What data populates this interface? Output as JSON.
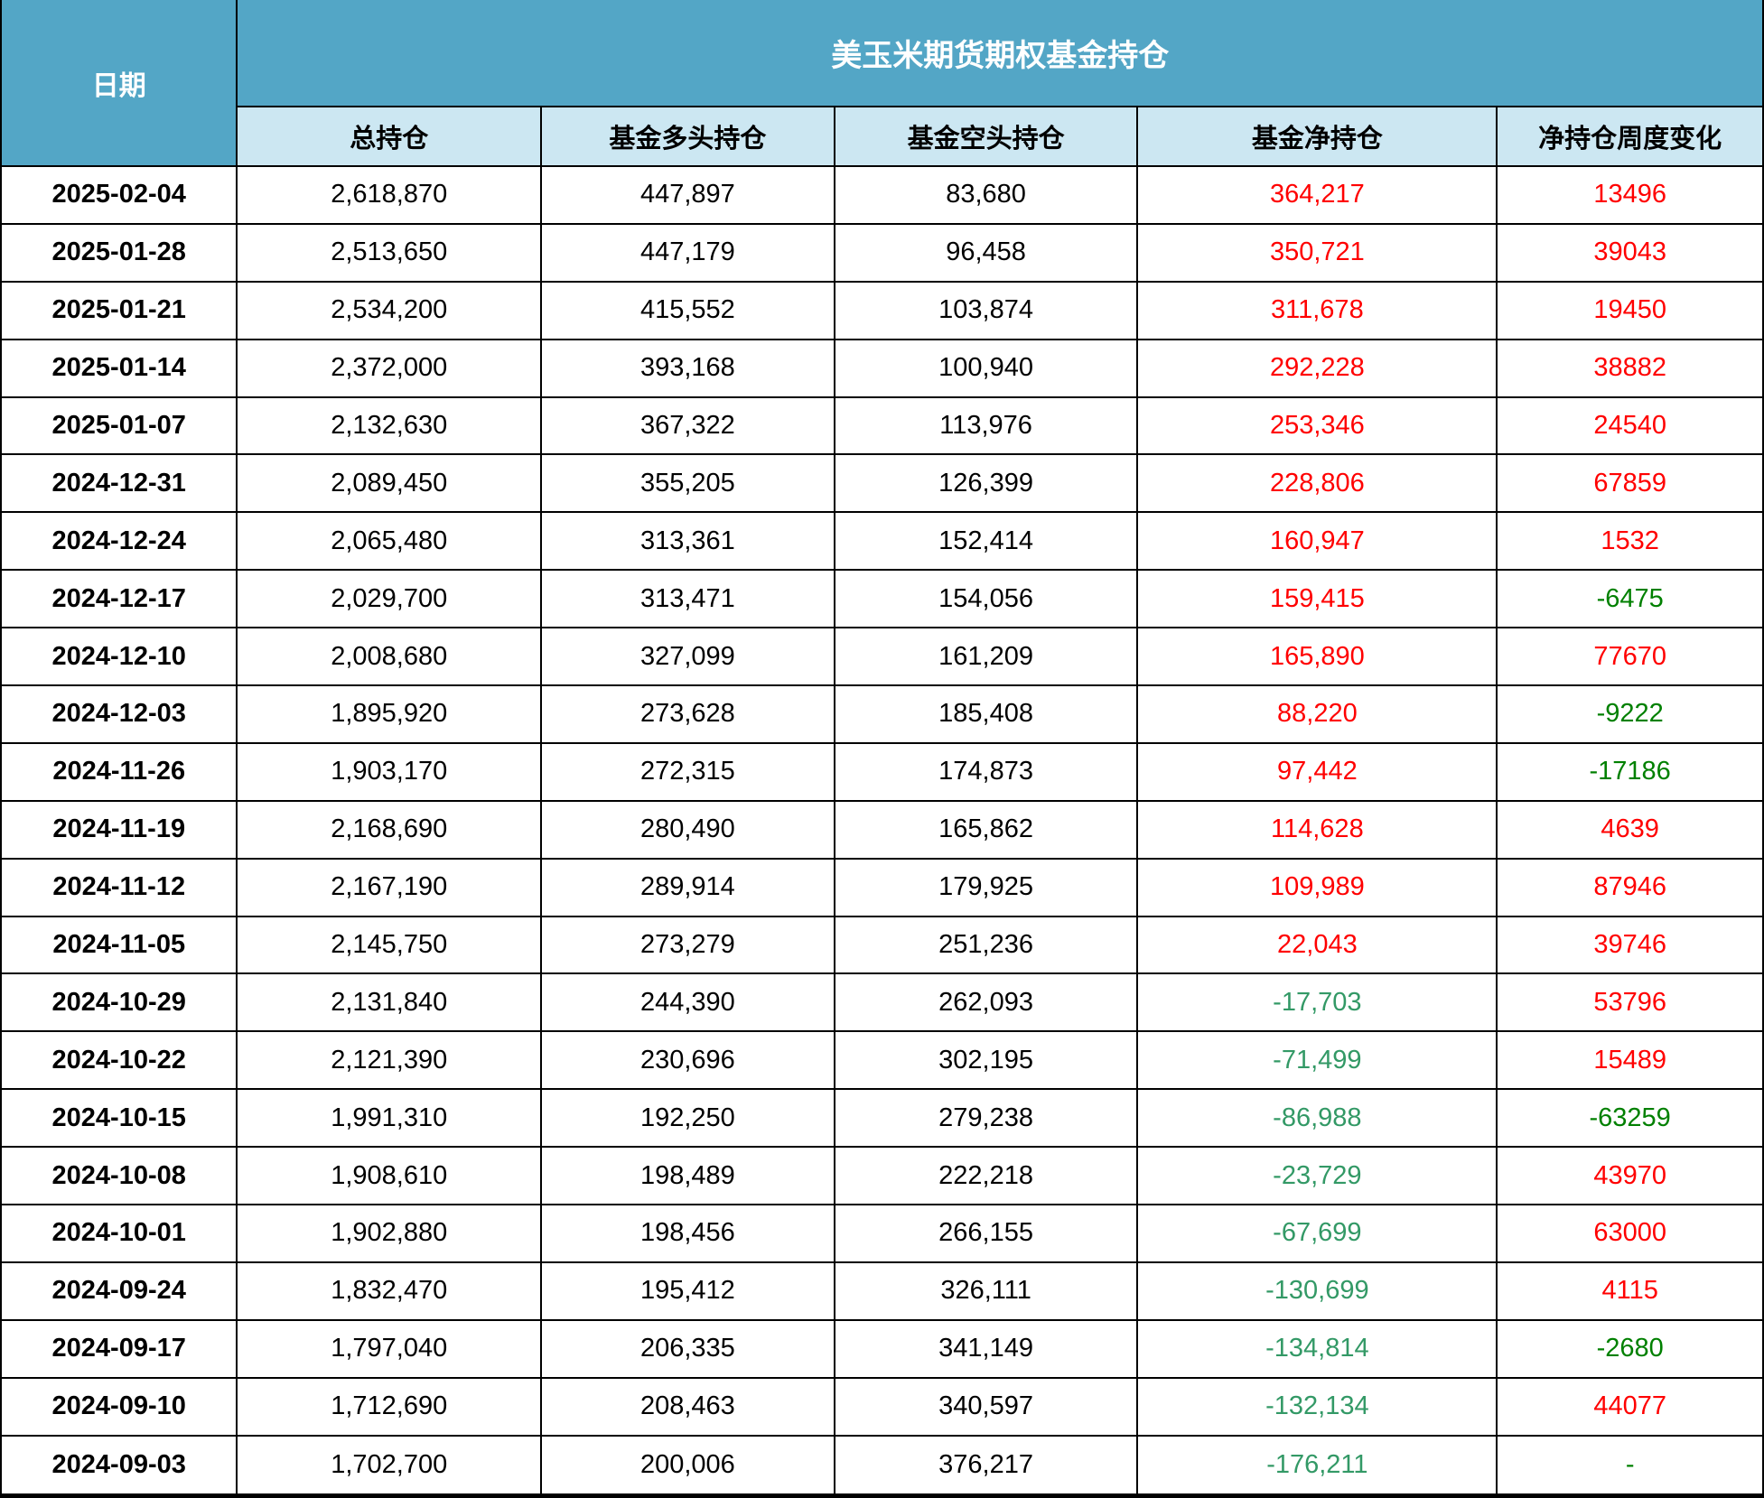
{
  "table": {
    "date_header": "日期",
    "title": "美玉米期货期权基金持仓",
    "columns": [
      "总持仓",
      "基金多头持仓",
      "基金空头持仓",
      "基金净持仓",
      "净持仓周度变化"
    ],
    "colors": {
      "header_blue": "#53a6c6",
      "subheader_light_blue": "#cce7f2",
      "positive_red": "#ff0000",
      "net_negative_green": "#339966",
      "change_negative_green": "#008000",
      "text_black": "#000000",
      "border_black": "#000000"
    },
    "rows": [
      {
        "date": "2025-02-04",
        "total": "2,618,870",
        "long": "447,897",
        "short": "83,680",
        "net": "364,217",
        "net_sign": "pos",
        "change": "13496",
        "change_sign": "pos"
      },
      {
        "date": "2025-01-28",
        "total": "2,513,650",
        "long": "447,179",
        "short": "96,458",
        "net": "350,721",
        "net_sign": "pos",
        "change": "39043",
        "change_sign": "pos"
      },
      {
        "date": "2025-01-21",
        "total": "2,534,200",
        "long": "415,552",
        "short": "103,874",
        "net": "311,678",
        "net_sign": "pos",
        "change": "19450",
        "change_sign": "pos"
      },
      {
        "date": "2025-01-14",
        "total": "2,372,000",
        "long": "393,168",
        "short": "100,940",
        "net": "292,228",
        "net_sign": "pos",
        "change": "38882",
        "change_sign": "pos"
      },
      {
        "date": "2025-01-07",
        "total": "2,132,630",
        "long": "367,322",
        "short": "113,976",
        "net": "253,346",
        "net_sign": "pos",
        "change": "24540",
        "change_sign": "pos"
      },
      {
        "date": "2024-12-31",
        "total": "2,089,450",
        "long": "355,205",
        "short": "126,399",
        "net": "228,806",
        "net_sign": "pos",
        "change": "67859",
        "change_sign": "pos"
      },
      {
        "date": "2024-12-24",
        "total": "2,065,480",
        "long": "313,361",
        "short": "152,414",
        "net": "160,947",
        "net_sign": "pos",
        "change": "1532",
        "change_sign": "pos"
      },
      {
        "date": "2024-12-17",
        "total": "2,029,700",
        "long": "313,471",
        "short": "154,056",
        "net": "159,415",
        "net_sign": "pos",
        "change": "-6475",
        "change_sign": "neg"
      },
      {
        "date": "2024-12-10",
        "total": "2,008,680",
        "long": "327,099",
        "short": "161,209",
        "net": "165,890",
        "net_sign": "pos",
        "change": "77670",
        "change_sign": "pos"
      },
      {
        "date": "2024-12-03",
        "total": "1,895,920",
        "long": "273,628",
        "short": "185,408",
        "net": "88,220",
        "net_sign": "pos",
        "change": "-9222",
        "change_sign": "neg"
      },
      {
        "date": "2024-11-26",
        "total": "1,903,170",
        "long": "272,315",
        "short": "174,873",
        "net": "97,442",
        "net_sign": "pos",
        "change": "-17186",
        "change_sign": "neg"
      },
      {
        "date": "2024-11-19",
        "total": "2,168,690",
        "long": "280,490",
        "short": "165,862",
        "net": "114,628",
        "net_sign": "pos",
        "change": "4639",
        "change_sign": "pos"
      },
      {
        "date": "2024-11-12",
        "total": "2,167,190",
        "long": "289,914",
        "short": "179,925",
        "net": "109,989",
        "net_sign": "pos",
        "change": "87946",
        "change_sign": "pos"
      },
      {
        "date": "2024-11-05",
        "total": "2,145,750",
        "long": "273,279",
        "short": "251,236",
        "net": "22,043",
        "net_sign": "pos",
        "change": "39746",
        "change_sign": "pos"
      },
      {
        "date": "2024-10-29",
        "total": "2,131,840",
        "long": "244,390",
        "short": "262,093",
        "net": "-17,703",
        "net_sign": "neg",
        "change": "53796",
        "change_sign": "pos"
      },
      {
        "date": "2024-10-22",
        "total": "2,121,390",
        "long": "230,696",
        "short": "302,195",
        "net": "-71,499",
        "net_sign": "neg",
        "change": "15489",
        "change_sign": "pos"
      },
      {
        "date": "2024-10-15",
        "total": "1,991,310",
        "long": "192,250",
        "short": "279,238",
        "net": "-86,988",
        "net_sign": "neg",
        "change": "-63259",
        "change_sign": "neg"
      },
      {
        "date": "2024-10-08",
        "total": "1,908,610",
        "long": "198,489",
        "short": "222,218",
        "net": "-23,729",
        "net_sign": "neg",
        "change": "43970",
        "change_sign": "pos"
      },
      {
        "date": "2024-10-01",
        "total": "1,902,880",
        "long": "198,456",
        "short": "266,155",
        "net": "-67,699",
        "net_sign": "neg",
        "change": "63000",
        "change_sign": "pos"
      },
      {
        "date": "2024-09-24",
        "total": "1,832,470",
        "long": "195,412",
        "short": "326,111",
        "net": "-130,699",
        "net_sign": "neg",
        "change": "4115",
        "change_sign": "pos"
      },
      {
        "date": "2024-09-17",
        "total": "1,797,040",
        "long": "206,335",
        "short": "341,149",
        "net": "-134,814",
        "net_sign": "neg",
        "change": "-2680",
        "change_sign": "neg"
      },
      {
        "date": "2024-09-10",
        "total": "1,712,690",
        "long": "208,463",
        "short": "340,597",
        "net": "-132,134",
        "net_sign": "neg",
        "change": "44077",
        "change_sign": "pos"
      },
      {
        "date": "2024-09-03",
        "total": "1,702,700",
        "long": "200,006",
        "short": "376,217",
        "net": "-176,211",
        "net_sign": "neg",
        "change": "-",
        "change_sign": "neg"
      }
    ]
  }
}
